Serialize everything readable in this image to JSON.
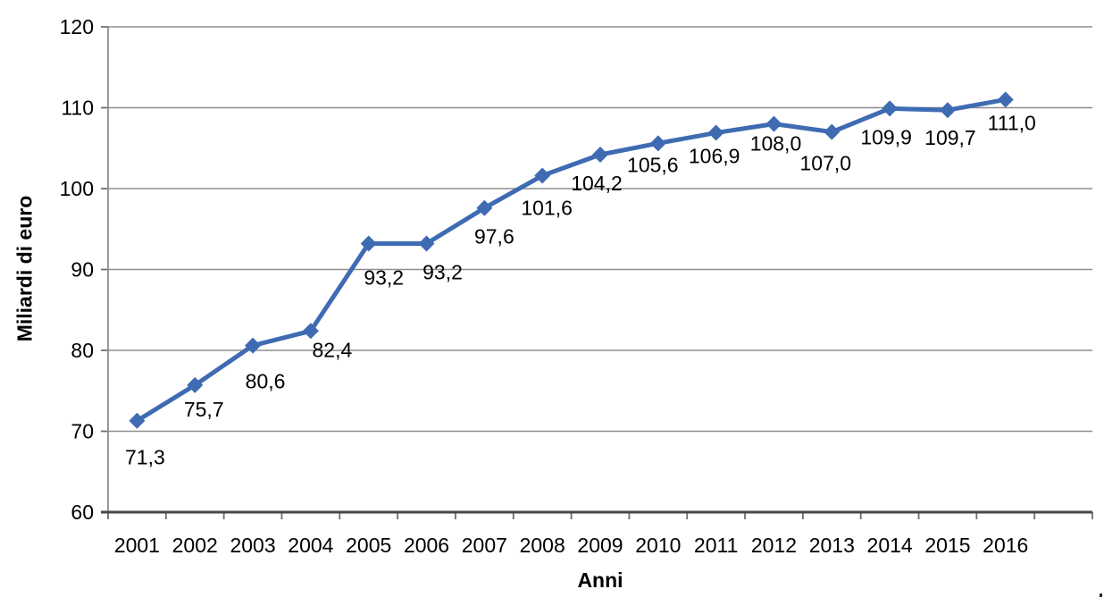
{
  "chart_data": {
    "type": "line",
    "title": "",
    "xlabel": "Anni",
    "ylabel": "Miliardi di euro",
    "categories": [
      "2001",
      "2002",
      "2003",
      "2004",
      "2005",
      "2006",
      "2007",
      "2008",
      "2009",
      "2010",
      "2011",
      "2012",
      "2013",
      "2014",
      "2015",
      "2016"
    ],
    "series": [
      {
        "name": "Miliardi di euro",
        "values": [
          71.3,
          75.7,
          80.6,
          82.4,
          93.2,
          93.2,
          97.6,
          101.6,
          104.2,
          105.6,
          106.9,
          108.0,
          107.0,
          109.9,
          109.7,
          111.0
        ],
        "point_labels": [
          "71,3",
          "75,7",
          "80,6",
          "82,4",
          "93,2",
          "93,2",
          "97,6",
          "101,6",
          "104,2",
          "105,6",
          "106,9",
          "108,0",
          "107,0",
          "109,9",
          "109,7",
          "111,0"
        ]
      }
    ],
    "ylim": [
      60,
      120
    ],
    "yticks": [
      60,
      70,
      80,
      90,
      100,
      110,
      120
    ],
    "decimal_separator": ",",
    "grid": "horizontal",
    "legend": "none",
    "marker": "diamond",
    "colors": {
      "line": "#3E6BB2",
      "marker": "#3E6BB2",
      "gridline": "#8E8E8E",
      "y_axis": "#8E8E8E",
      "x_axis": "#474747",
      "tick": "#6E6E6E",
      "text": "#000000",
      "background": "#FFFFFF"
    }
  }
}
